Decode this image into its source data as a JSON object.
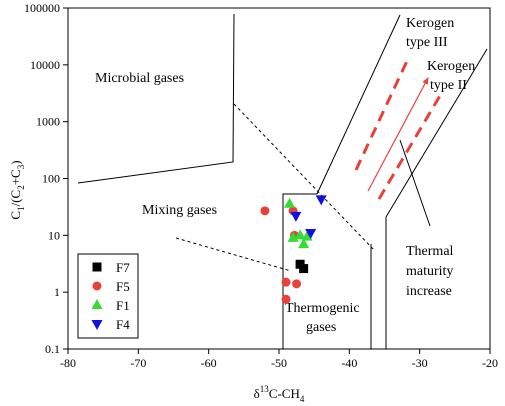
{
  "chart_data": {
    "type": "scatter",
    "title": "",
    "xlabel": {
      "pre": "δ",
      "sup": "13",
      "post": "C-CH",
      "sub": "4"
    },
    "ylabel": {
      "a": "C",
      "a_sub": "1",
      "b": "/(C",
      "b_sub": "2",
      "c": "+C",
      "c_sub": "3",
      "d": ")"
    },
    "xlim": [
      -80,
      -20
    ],
    "ylim": [
      0.1,
      100000
    ],
    "yscale": "log",
    "x_ticks": [
      -80,
      -70,
      -60,
      -50,
      -40,
      -30,
      -20
    ],
    "y_ticks": [
      {
        "value": 0.1,
        "label": "0.1"
      },
      {
        "value": 1,
        "label": "1"
      },
      {
        "value": 10,
        "label": "10"
      },
      {
        "value": 100,
        "label": "100"
      },
      {
        "value": 1000,
        "label": "1000"
      },
      {
        "value": 10000,
        "label": "10000"
      },
      {
        "value": 100000,
        "label": "100000"
      }
    ],
    "legend_position": "bottom-left",
    "series": [
      {
        "name": "F7",
        "marker": "square",
        "color": "#000000",
        "points": [
          [
            -47,
            3.1
          ],
          [
            -46.5,
            2.6
          ]
        ]
      },
      {
        "name": "F5",
        "marker": "circle",
        "color": "#e8413c",
        "points": [
          [
            -52,
            27
          ],
          [
            -48,
            27
          ],
          [
            -47.8,
            10
          ],
          [
            -49,
            1.5
          ],
          [
            -47.5,
            1.4
          ],
          [
            -49,
            0.75
          ]
        ]
      },
      {
        "name": "F1",
        "marker": "triangle-up",
        "color": "#33dd33",
        "points": [
          [
            -48.5,
            36
          ],
          [
            -48,
            9
          ],
          [
            -47,
            10
          ],
          [
            -46.5,
            7
          ],
          [
            -46,
            9.5
          ]
        ]
      },
      {
        "name": "F4",
        "marker": "triangle-down",
        "color": "#1111dd",
        "points": [
          [
            -44,
            43
          ],
          [
            -47.6,
            22
          ],
          [
            -45.5,
            11
          ]
        ]
      }
    ],
    "region_labels": {
      "microbial": "Microbial gases",
      "mixing": "Mixing gases",
      "thermogenic": [
        "Thermogenic",
        "gases"
      ],
      "kerogen3": [
        "Kerogen",
        "type III"
      ],
      "kerogen2": [
        "Kerogen",
        "type II"
      ],
      "thermal": [
        "Thermal",
        "maturity",
        "increase"
      ]
    }
  }
}
